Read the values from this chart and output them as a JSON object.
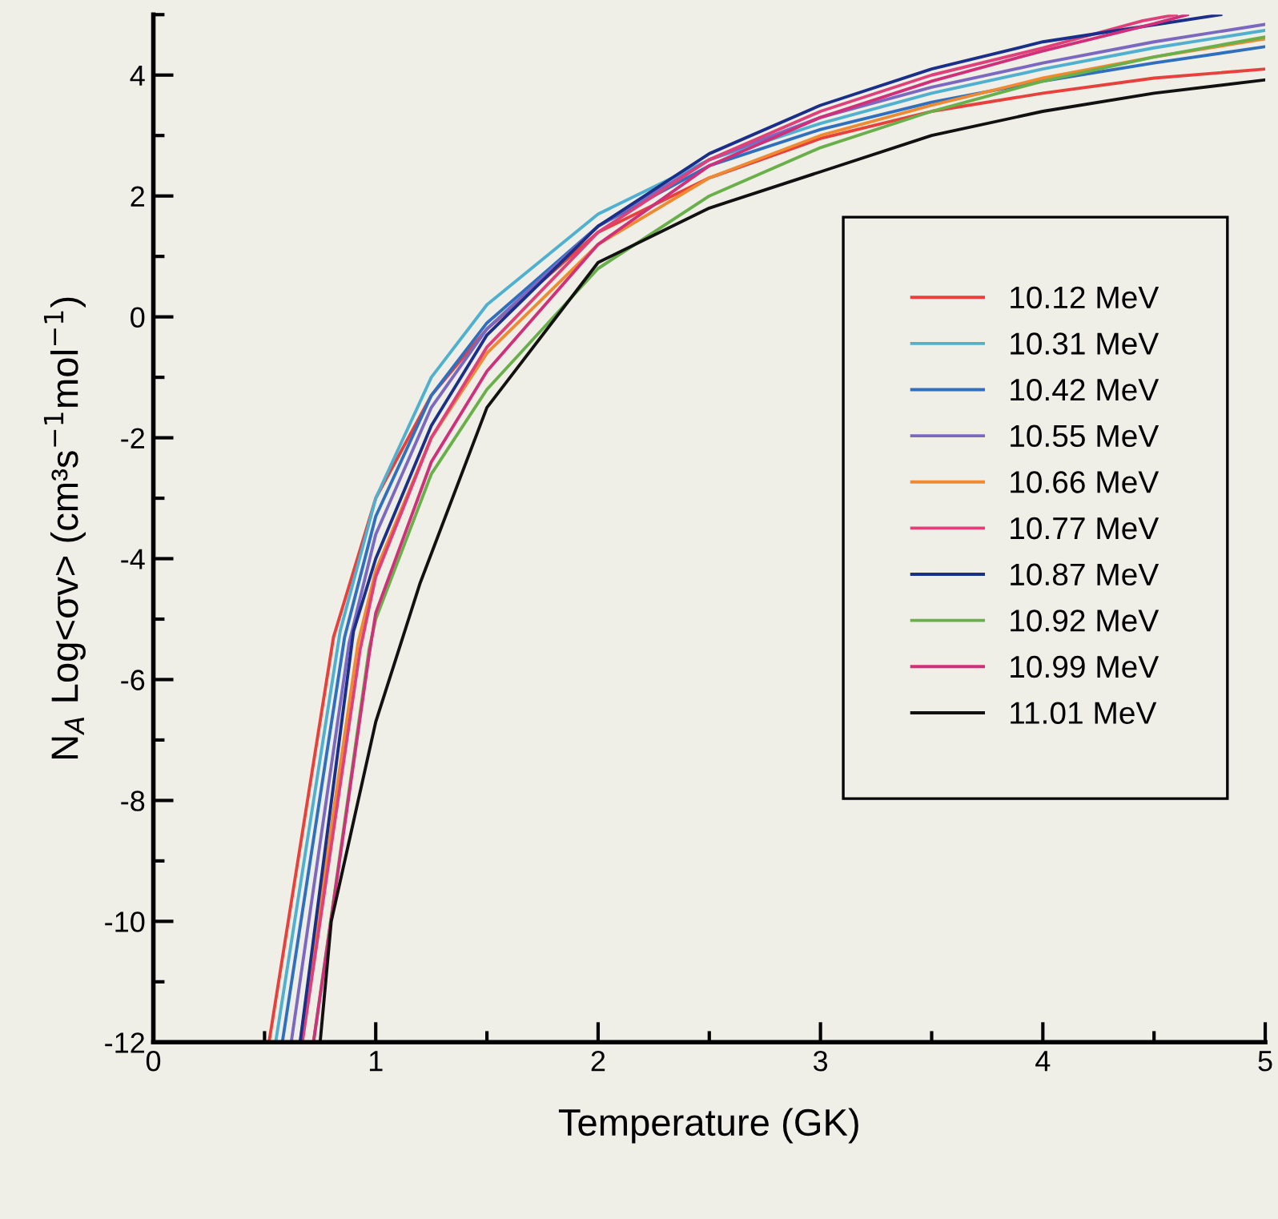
{
  "chart_data": {
    "type": "line",
    "xlabel": "Temperature (GK)",
    "ylabel": "N$_{A}$ Log<σv> (cm³s$^{−1}$mol$^{−1}$)",
    "xlim": [
      0,
      5
    ],
    "ylim": [
      -12,
      5
    ],
    "xticks": [
      0,
      1,
      2,
      3,
      4,
      5
    ],
    "yticks": [
      -12,
      -10,
      -8,
      -6,
      -4,
      -2,
      0,
      2,
      4
    ],
    "legend": "right",
    "grid": false,
    "marker": "none",
    "line_style": "solid",
    "series": [
      {
        "name": "10.12 MeV",
        "color": "#e8403a",
        "x": [
          0.52,
          0.81,
          1,
          1.25,
          1.5,
          2,
          2.5,
          3,
          3.5,
          4,
          4.5,
          5
        ],
        "values": [
          -12,
          -5.3,
          -3.0,
          -1.3,
          -0.2,
          1.4,
          2.3,
          2.95,
          3.4,
          3.7,
          3.95,
          4.1
        ]
      },
      {
        "name": "10.31 MeV",
        "color": "#4fb0d0",
        "x": [
          0.55,
          0.84,
          1,
          1.25,
          1.5,
          2,
          2.5,
          3,
          3.5,
          4,
          4.5,
          5
        ],
        "values": [
          -12,
          -5.2,
          -3.0,
          -1.0,
          0.2,
          1.7,
          2.6,
          3.2,
          3.7,
          4.1,
          4.45,
          4.74
        ]
      },
      {
        "name": "10.42 MeV",
        "color": "#2f6fc0",
        "x": [
          0.58,
          0.86,
          1,
          1.25,
          1.5,
          2,
          2.5,
          3,
          3.5,
          4,
          4.5,
          5
        ],
        "values": [
          -12,
          -5.3,
          -3.3,
          -1.3,
          -0.1,
          1.5,
          2.5,
          3.1,
          3.55,
          3.9,
          4.2,
          4.47
        ]
      },
      {
        "name": "10.55 MeV",
        "color": "#7b68c0",
        "x": [
          0.62,
          0.88,
          1,
          1.25,
          1.5,
          2,
          2.5,
          3,
          3.5,
          4,
          4.5,
          5
        ],
        "values": [
          -12,
          -5.4,
          -3.6,
          -1.5,
          -0.2,
          1.5,
          2.6,
          3.3,
          3.8,
          4.2,
          4.55,
          4.84
        ]
      },
      {
        "name": "10.66 MeV",
        "color": "#f08a30",
        "x": [
          0.66,
          0.92,
          1,
          1.25,
          1.5,
          2,
          2.5,
          3,
          3.5,
          4,
          4.5,
          5
        ],
        "values": [
          -12,
          -5.4,
          -4.2,
          -2.0,
          -0.6,
          1.2,
          2.3,
          3.0,
          3.5,
          3.95,
          4.3,
          4.6
        ]
      },
      {
        "name": "10.77 MeV",
        "color": "#e0407a",
        "x": [
          0.67,
          0.93,
          1,
          1.25,
          1.5,
          2,
          2.5,
          3,
          3.5,
          4,
          4.45,
          4.6
        ],
        "values": [
          -12,
          -5.5,
          -4.3,
          -2.0,
          -0.5,
          1.4,
          2.6,
          3.4,
          4.0,
          4.45,
          4.9,
          5.0
        ]
      },
      {
        "name": "10.87 MeV",
        "color": "#1a2f8a",
        "x": [
          0.66,
          0.9,
          1,
          1.25,
          1.5,
          2,
          2.5,
          3,
          3.5,
          4,
          4.8
        ],
        "values": [
          -12,
          -5.2,
          -4.0,
          -1.8,
          -0.3,
          1.5,
          2.7,
          3.5,
          4.1,
          4.55,
          5.0
        ]
      },
      {
        "name": "10.92 MeV",
        "color": "#6ab04a",
        "x": [
          0.72,
          0.97,
          1,
          1.25,
          1.5,
          2,
          2.5,
          3,
          3.5,
          4,
          4.5,
          5
        ],
        "values": [
          -12,
          -5.5,
          -5.0,
          -2.6,
          -1.2,
          0.8,
          2.0,
          2.8,
          3.4,
          3.9,
          4.3,
          4.63
        ]
      },
      {
        "name": "10.99 MeV",
        "color": "#d0307a",
        "x": [
          0.72,
          0.97,
          1,
          1.25,
          1.5,
          2,
          2.5,
          3,
          3.5,
          4,
          4.5,
          4.65
        ],
        "values": [
          -12,
          -5.6,
          -4.9,
          -2.4,
          -0.9,
          1.2,
          2.5,
          3.3,
          3.9,
          4.4,
          4.85,
          5.0
        ]
      },
      {
        "name": "11.01 MeV",
        "color": "#111111",
        "x": [
          0.75,
          0.8,
          1,
          1.2,
          1.5,
          2,
          2.5,
          3,
          3.5,
          4,
          4.5,
          5
        ],
        "values": [
          -12,
          -10,
          -6.7,
          -4.4,
          -1.5,
          0.9,
          1.8,
          2.4,
          3.0,
          3.4,
          3.7,
          3.92
        ]
      }
    ]
  }
}
